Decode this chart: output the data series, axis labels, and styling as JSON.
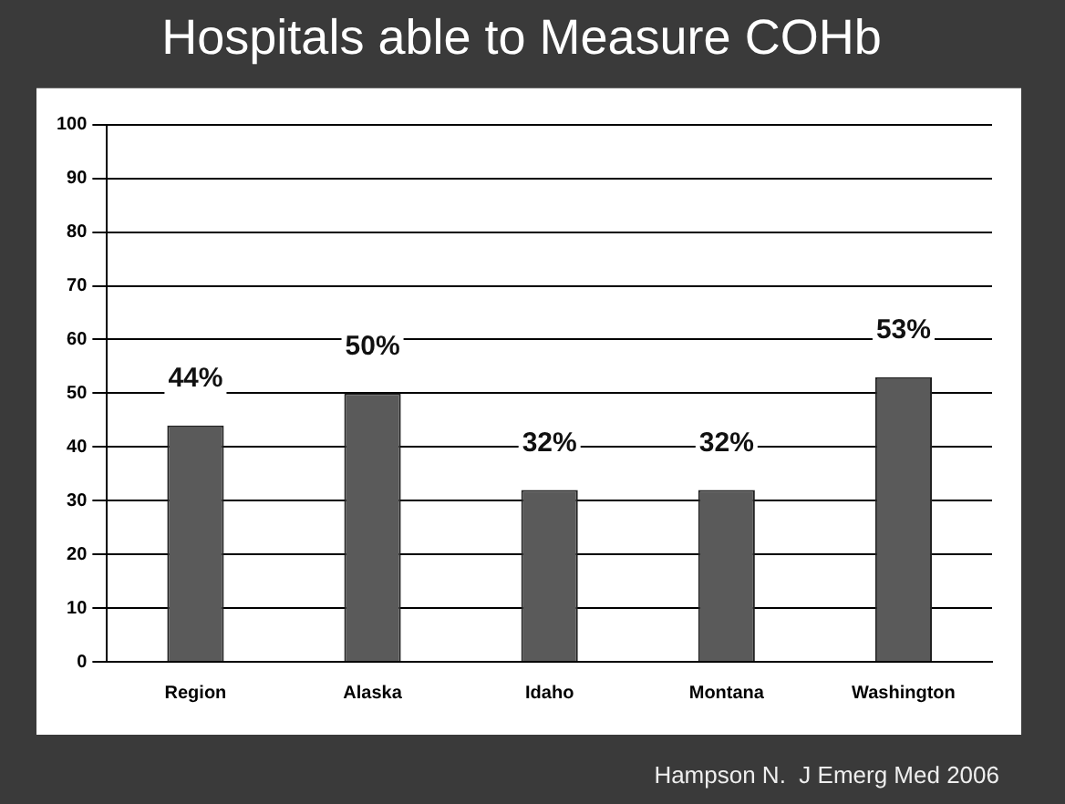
{
  "chart_data": {
    "type": "bar",
    "title": "Hospitals able to Measure COHb",
    "categories": [
      "Region",
      "Alaska",
      "Idaho",
      "Montana",
      "Washington"
    ],
    "values": [
      44,
      50,
      32,
      32,
      53
    ],
    "value_labels": [
      "44%",
      "50%",
      "32%",
      "32%",
      "53%"
    ],
    "color": "#5a5a5a",
    "ylim": [
      0,
      100
    ],
    "yticks": [
      0,
      10,
      20,
      30,
      40,
      50,
      60,
      70,
      80,
      90,
      100
    ],
    "grid": "y",
    "legend": false,
    "annotations": [
      "Hampson N.  J Emerg Med 2006"
    ]
  }
}
